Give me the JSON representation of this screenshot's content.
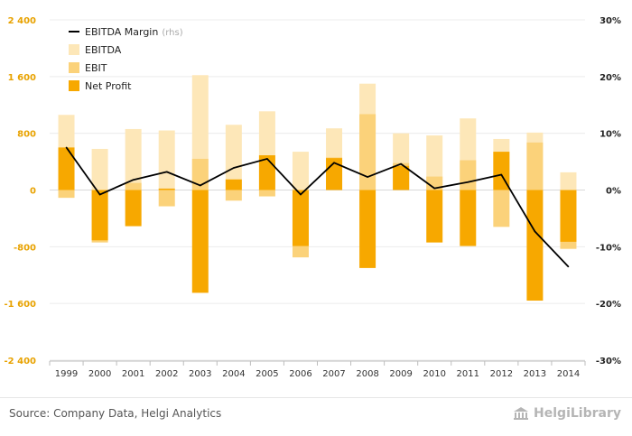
{
  "chart_data": {
    "type": "bar",
    "categories": [
      "1999",
      "2000",
      "2001",
      "2002",
      "2003",
      "2004",
      "2005",
      "2006",
      "2007",
      "2008",
      "2009",
      "2010",
      "2011",
      "2012",
      "2013",
      "2014"
    ],
    "series": [
      {
        "name": "EBITDA",
        "kind": "bar",
        "color": "#fde7b8",
        "values": [
          1060,
          580,
          860,
          840,
          1620,
          920,
          1110,
          540,
          870,
          1500,
          800,
          770,
          1010,
          720,
          810,
          250
        ]
      },
      {
        "name": "EBIT",
        "kind": "bar",
        "color": "#fbd27a",
        "values": [
          -110,
          -740,
          100,
          -230,
          440,
          -150,
          -90,
          -950,
          460,
          1070,
          380,
          190,
          420,
          -520,
          670,
          -830
        ]
      },
      {
        "name": "Net Profit",
        "kind": "bar",
        "color": "#f7a800",
        "values": [
          600,
          -710,
          -510,
          20,
          -1450,
          150,
          490,
          -790,
          450,
          -1100,
          340,
          -740,
          -790,
          540,
          -1560,
          -730
        ]
      },
      {
        "name": "EBITDA Margin",
        "name_suffix": "(rhs)",
        "kind": "line",
        "color": "#000000",
        "axis": "right",
        "values": [
          7.5,
          -0.8,
          1.8,
          3.2,
          0.8,
          3.9,
          5.5,
          -0.8,
          4.8,
          2.3,
          4.6,
          0.3,
          1.4,
          2.7,
          -7.3,
          -13.5
        ]
      }
    ],
    "y_left": {
      "min": -2400,
      "max": 2400,
      "ticks": [
        2400,
        1600,
        800,
        0,
        -800,
        -1600,
        -2400
      ],
      "tick_labels": [
        "2 400",
        "1 600",
        "800",
        "0",
        "-800",
        "-1 600",
        "-2 400"
      ]
    },
    "y_right": {
      "min": -30,
      "max": 30,
      "ticks": [
        30,
        20,
        10,
        0,
        -10,
        -20,
        -30
      ],
      "tick_labels": [
        "30%",
        "20%",
        "10%",
        "0%",
        "-10%",
        "-20%",
        "-30%"
      ]
    },
    "legend_position": "top-left",
    "grid": true
  },
  "footer": {
    "source": "Source: Company Data, Helgi Analytics",
    "brand": "HelgiLibrary",
    "brand_icon": "library-building-icon"
  }
}
